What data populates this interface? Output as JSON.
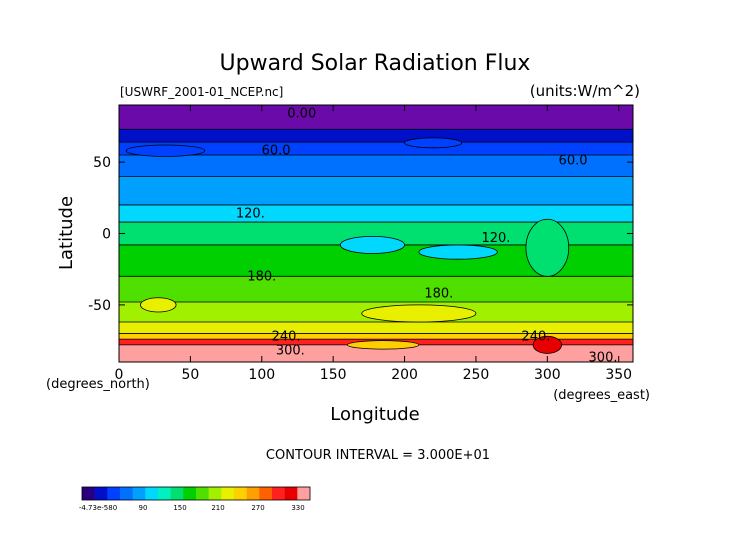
{
  "chart_data": {
    "type": "heatmap",
    "title": "Upward Solar Radiation Flux",
    "source_label": "[USWRF_2001-01_NCEP.nc]",
    "units_label": "(units:W/m^2)",
    "xlabel": "Longitude",
    "ylabel": "Latitude",
    "x_unit_label": "(degrees_east)",
    "y_unit_label": "(degrees_north)",
    "xlim": [
      0,
      360
    ],
    "ylim": [
      -90,
      90
    ],
    "x_ticks": [
      0,
      50,
      100,
      150,
      200,
      250,
      300,
      350
    ],
    "y_ticks": [
      50,
      0,
      -50
    ],
    "contour_interval_label": "CONTOUR INTERVAL = 3.000E+01",
    "contour_labels": [
      {
        "text": "0.00",
        "lon": 128,
        "lat": 84
      },
      {
        "text": "60.0",
        "lon": 110,
        "lat": 58
      },
      {
        "text": "60.0",
        "lon": 318,
        "lat": 51
      },
      {
        "text": "120.",
        "lon": 92,
        "lat": 14
      },
      {
        "text": "120.",
        "lon": 264,
        "lat": -3
      },
      {
        "text": "180.",
        "lon": 100,
        "lat": -30
      },
      {
        "text": "180.",
        "lon": 224,
        "lat": -42
      },
      {
        "text": "240.",
        "lon": 117,
        "lat": -72
      },
      {
        "text": "240.",
        "lon": 292,
        "lat": -72
      },
      {
        "text": "300.",
        "lon": 120,
        "lat": -82
      },
      {
        "text": "300.",
        "lon": 339,
        "lat": -87
      }
    ],
    "colorbar_labels": [
      "-4.73e-580",
      "90",
      "150",
      "210",
      "270",
      "330"
    ],
    "colorbar_colors": [
      "#2a0080",
      "#0010c8",
      "#0040ff",
      "#0070ff",
      "#00a0ff",
      "#00d8ff",
      "#00f0c0",
      "#00e070",
      "#00d000",
      "#50e000",
      "#a0f000",
      "#e8f000",
      "#ffd000",
      "#ffa000",
      "#ff6000",
      "#ff2020",
      "#e80000",
      "#ffa0a0"
    ],
    "bands": [
      {
        "lat_top": 90,
        "lat_bottom": 73,
        "value": 0,
        "color": "#6a0aa8"
      },
      {
        "lat_top": 73,
        "lat_bottom": 64,
        "value": 20,
        "color": "#0010c8"
      },
      {
        "lat_top": 64,
        "lat_bottom": 55,
        "value": 45,
        "color": "#0040ff"
      },
      {
        "lat_top": 55,
        "lat_bottom": 40,
        "value": 75,
        "color": "#0070ff"
      },
      {
        "lat_top": 40,
        "lat_bottom": 20,
        "value": 105,
        "color": "#00a0ff"
      },
      {
        "lat_top": 20,
        "lat_bottom": 8,
        "value": 130,
        "color": "#00d8ff"
      },
      {
        "lat_top": 8,
        "lat_bottom": -8,
        "value": 150,
        "color": "#00e070"
      },
      {
        "lat_top": -8,
        "lat_bottom": -30,
        "value": 175,
        "color": "#00d000"
      },
      {
        "lat_top": -30,
        "lat_bottom": -48,
        "value": 200,
        "color": "#50e000"
      },
      {
        "lat_top": -48,
        "lat_bottom": -62,
        "value": 215,
        "color": "#a0f000"
      },
      {
        "lat_top": -62,
        "lat_bottom": -70,
        "value": 235,
        "color": "#e8f000"
      },
      {
        "lat_top": -70,
        "lat_bottom": -74,
        "value": 250,
        "color": "#ffd000"
      },
      {
        "lat_top": -74,
        "lat_bottom": -78,
        "value": 280,
        "color": "#ff2020"
      },
      {
        "lat_top": -78,
        "lat_bottom": -90,
        "value": 330,
        "color": "#ffa0a0"
      }
    ],
    "patches": [
      {
        "lon": [
          5,
          60
        ],
        "lat": [
          62,
          54
        ],
        "color": "#0040ff"
      },
      {
        "lon": [
          200,
          240
        ],
        "lat": [
          67,
          60
        ],
        "color": "#0040ff"
      },
      {
        "lon": [
          155,
          200
        ],
        "lat": [
          -2,
          -14
        ],
        "color": "#00d8ff"
      },
      {
        "lon": [
          210,
          265
        ],
        "lat": [
          -8,
          -18
        ],
        "color": "#00d8ff"
      },
      {
        "lon": [
          285,
          315
        ],
        "lat": [
          10,
          -30
        ],
        "color": "#00e070"
      },
      {
        "lon": [
          15,
          40
        ],
        "lat": [
          -45,
          -55
        ],
        "color": "#e8f000"
      },
      {
        "lon": [
          170,
          250
        ],
        "lat": [
          -50,
          -62
        ],
        "color": "#e8f000"
      },
      {
        "lon": [
          160,
          210
        ],
        "lat": [
          -75,
          -81
        ],
        "color": "#ffd000"
      },
      {
        "lon": [
          290,
          310
        ],
        "lat": [
          -72,
          -84
        ],
        "color": "#e80000"
      }
    ],
    "grid": false
  }
}
